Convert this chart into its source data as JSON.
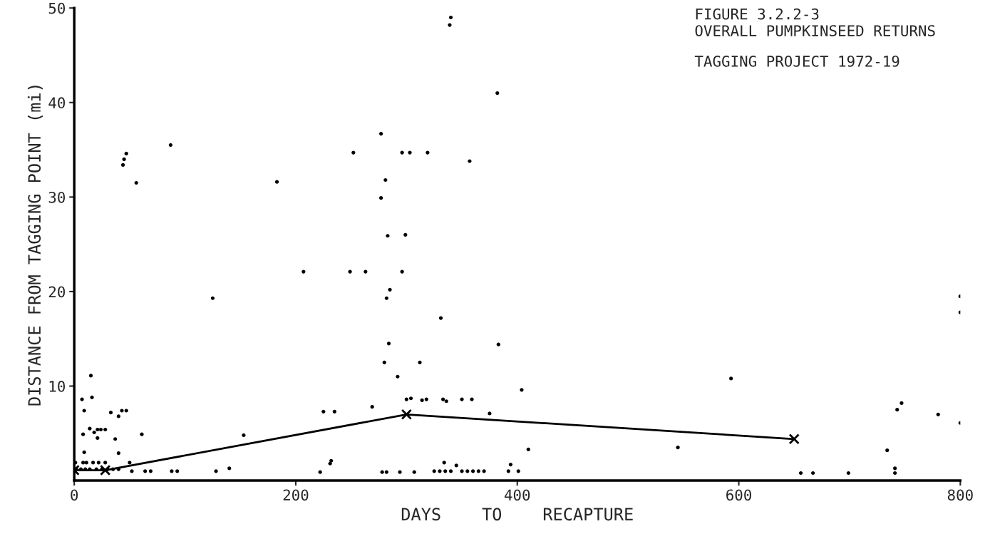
{
  "chart_data": {
    "type": "scatter",
    "title": "FIGURE 3.2.2-3\nOVERALL PUMPKINSEED RETURNS",
    "subtitle": "TAGGING PROJECT 1972-19",
    "xlabel": "DAYS    TO    RECAPTURE",
    "ylabel": "DISTANCE FROM TAGGING POINT (mi)",
    "xlim": [
      0,
      800
    ],
    "ylim": [
      0,
      50
    ],
    "xticks": [
      0,
      200,
      400,
      600,
      800
    ],
    "yticks": [
      10,
      20,
      30,
      40,
      50
    ],
    "grid": false,
    "legend": false,
    "series": [
      {
        "color": "#000000",
        "marker": "circle",
        "x": [
          7,
          9,
          8,
          9,
          15,
          16,
          14,
          18,
          21,
          24,
          28,
          21,
          33,
          43,
          40,
          47,
          37,
          40,
          61,
          125,
          52,
          64,
          69,
          88,
          93,
          1,
          8,
          11,
          17,
          22,
          28,
          50,
          2,
          6,
          10,
          14,
          20,
          25,
          30,
          35,
          40,
          45,
          47,
          44,
          56,
          87,
          340,
          339,
          382,
          277,
          252,
          296,
          303,
          319,
          357,
          183,
          281,
          277,
          283,
          299,
          207,
          249,
          263,
          296,
          285,
          282,
          331,
          284,
          280,
          312,
          292,
          383,
          300,
          304,
          314,
          318,
          333,
          336,
          350,
          359,
          375,
          269,
          225,
          235,
          153,
          232,
          231,
          128,
          140,
          222,
          278,
          282,
          294,
          307,
          325,
          330,
          335,
          340,
          350,
          355,
          360,
          365,
          370,
          334,
          345,
          404,
          410,
          545,
          593,
          743,
          747,
          780,
          800,
          734,
          741,
          741,
          394,
          392,
          401,
          656,
          667,
          699,
          800,
          800
        ],
        "values": [
          8.6,
          7.4,
          4.9,
          3.0,
          11.1,
          8.8,
          5.5,
          5.1,
          5.4,
          5.4,
          5.4,
          4.5,
          7.2,
          7.4,
          6.8,
          7.4,
          4.4,
          2.9,
          4.9,
          19.3,
          1.0,
          1.0,
          1.0,
          1.0,
          1.0,
          1.9,
          1.9,
          1.9,
          1.9,
          1.9,
          1.9,
          1.9,
          1.2,
          1.2,
          1.2,
          1.2,
          1.2,
          1.2,
          1.2,
          1.2,
          1.2,
          34.0,
          34.6,
          33.4,
          31.5,
          35.5,
          49.0,
          48.2,
          41.0,
          36.7,
          34.7,
          34.7,
          34.7,
          34.7,
          33.8,
          31.6,
          31.8,
          29.9,
          25.9,
          26.0,
          22.1,
          22.1,
          22.1,
          22.1,
          20.2,
          19.3,
          17.2,
          14.5,
          12.5,
          12.5,
          11.0,
          14.4,
          8.6,
          8.7,
          8.5,
          8.6,
          8.6,
          8.4,
          8.6,
          8.6,
          7.1,
          7.8,
          7.3,
          7.3,
          4.8,
          2.1,
          1.8,
          1.0,
          1.3,
          0.9,
          0.9,
          0.9,
          0.9,
          0.9,
          1.0,
          1.0,
          1.0,
          1.0,
          1.0,
          1.0,
          1.0,
          1.0,
          1.0,
          1.9,
          1.6,
          9.6,
          3.3,
          3.5,
          10.8,
          7.5,
          8.2,
          7.0,
          6.1,
          3.2,
          1.3,
          0.8,
          1.7,
          1.0,
          1.0,
          0.8,
          0.8,
          0.8,
          19.5,
          17.8
        ]
      },
      {
        "type": "line",
        "color": "#000000",
        "marker": "cross",
        "line_style": "solid",
        "x": [
          0,
          28,
          300,
          650
        ],
        "values": [
          1.1,
          1.1,
          7.0,
          4.4
        ]
      }
    ]
  }
}
